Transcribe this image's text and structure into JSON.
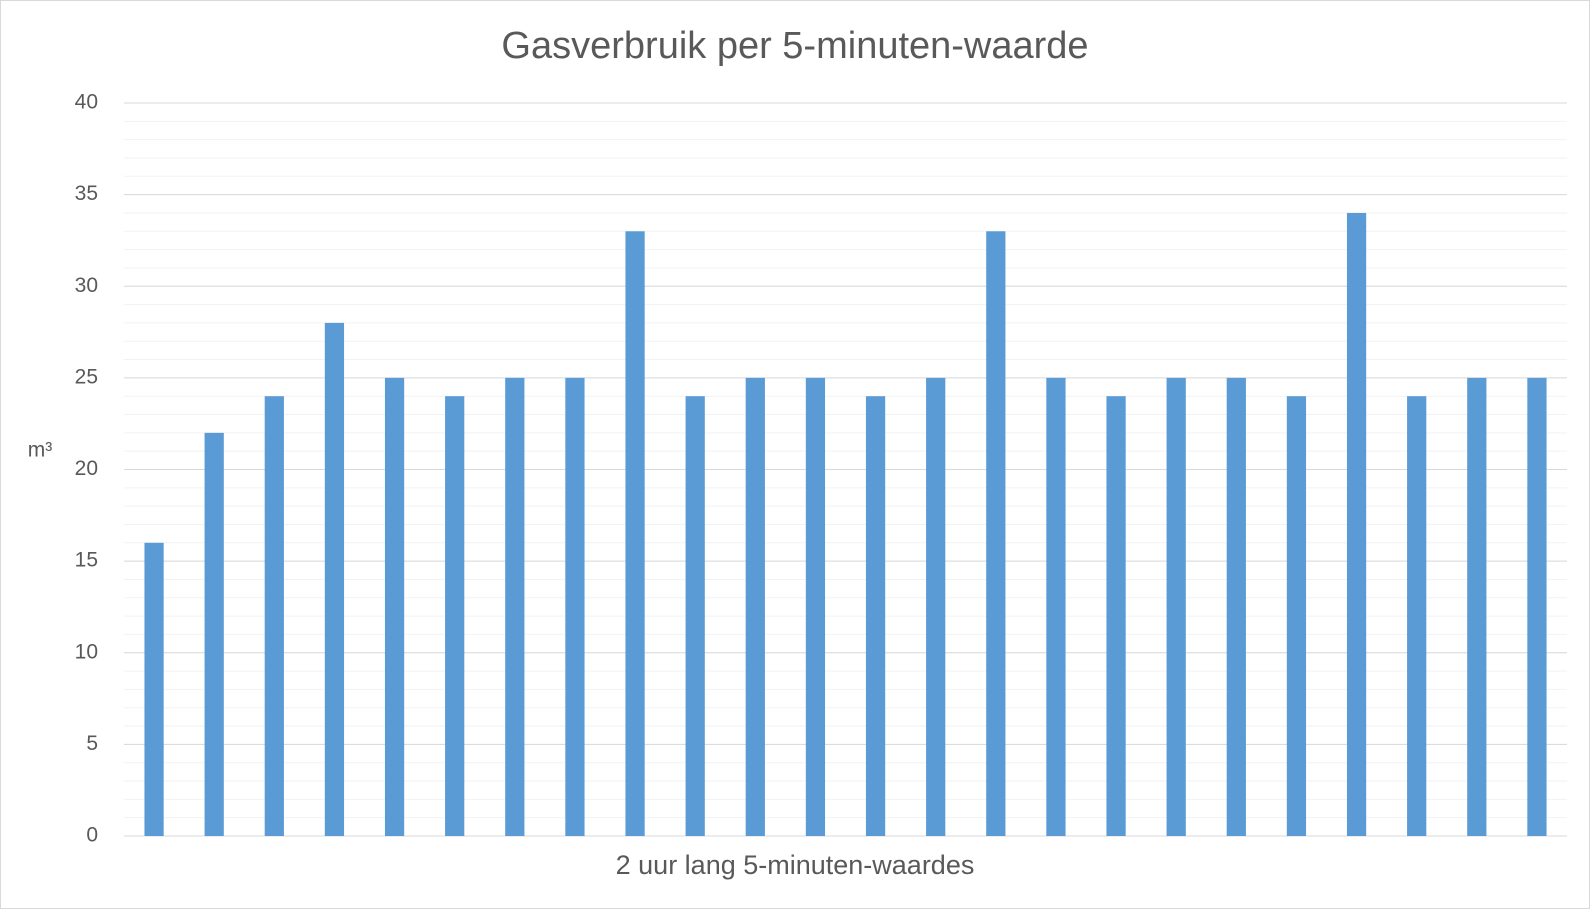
{
  "chart_data": {
    "type": "bar",
    "title": "Gasverbruik per 5-minuten-waarde",
    "x_label": "2 uur lang 5-minuten-waardes",
    "y_label": "m³",
    "categories": [
      null,
      null,
      null,
      null,
      null,
      null,
      null,
      null,
      null,
      null,
      null,
      null,
      null,
      null,
      null,
      null,
      null,
      null,
      null,
      null,
      null,
      null,
      null,
      null
    ],
    "values": [
      16,
      22,
      24,
      28,
      25,
      24,
      25,
      25,
      33,
      24,
      25,
      25,
      24,
      25,
      33,
      25,
      24,
      25,
      25,
      24,
      34,
      24,
      25,
      25
    ],
    "color": "#5b9bd5",
    "ylim": [
      0,
      40
    ],
    "yticks": [
      0,
      5,
      10,
      15,
      20,
      25,
      30,
      35,
      40
    ],
    "grid": true,
    "minor_ystep": 1
  }
}
